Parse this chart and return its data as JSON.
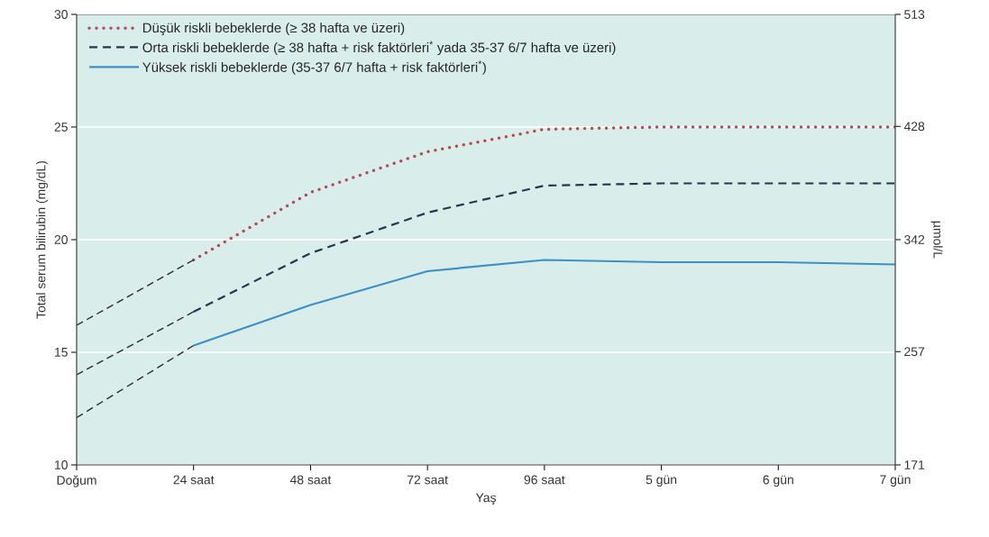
{
  "chart_data": {
    "type": "line",
    "xlabel": "Yaş",
    "ylabel": "Total serum bilirubin (mg/dL)",
    "y2label": "µmol/L",
    "categories": [
      "Doğum",
      "24 saat",
      "48 saat",
      "72 saat",
      "96 saat",
      "5 gün",
      "6 gün",
      "7 gün"
    ],
    "ylim": [
      10,
      30
    ],
    "yticks": [
      10,
      15,
      20,
      25,
      30
    ],
    "y2lim": [
      171,
      513
    ],
    "y2ticks": [
      171,
      257,
      342,
      428,
      513
    ],
    "grid": "y",
    "legend": "top left",
    "marker": "none",
    "series": [
      {
        "name": "Düşük riskli bebeklerde (≥ 38 hafta ve üzeri)",
        "color": "#b04a55",
        "line_style": "dotted",
        "values": [
          null,
          19.1,
          22.1,
          23.9,
          24.9,
          25,
          25,
          25
        ]
      },
      {
        "name": "Orta riskli bebeklerde  (≥ 38 hafta + risk faktörleri$^{*}$ yada 35-37 6/7 hafta ve üzeri)",
        "color": "#253650",
        "line_style": "dashed",
        "values": [
          null,
          16.8,
          19.4,
          21.2,
          22.4,
          22.5,
          22.5,
          22.5
        ]
      },
      {
        "name": "Yüksek riskli bebeklerde (35-37 6/7 hafta + risk faktörleri$^{*}$)",
        "color": "#3d8fc6",
        "line_style": "solid",
        "values": [
          null,
          15.3,
          17.1,
          18.6,
          19.1,
          19.0,
          19.0,
          18.9
        ]
      },
      {
        "color": "#2b2b2b",
        "line_style": "dashed",
        "values": [
          16.2,
          19.1,
          null,
          null,
          null,
          null,
          null,
          null
        ]
      },
      {
        "color": "#2b2b2b",
        "line_style": "dashed",
        "values": [
          14.0,
          16.8,
          null,
          null,
          null,
          null,
          null,
          null
        ]
      },
      {
        "color": "#2b2b2b",
        "line_style": "dashed",
        "values": [
          12.1,
          15.3,
          null,
          null,
          null,
          null,
          null,
          null
        ]
      }
    ]
  }
}
